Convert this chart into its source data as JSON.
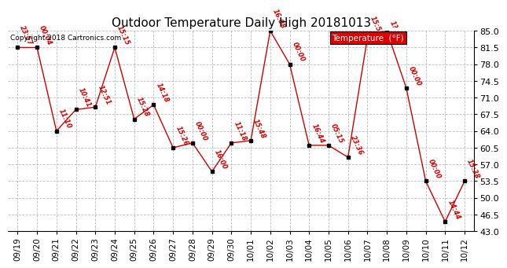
{
  "title": "Outdoor Temperature Daily High 20181013",
  "copyright": "Copyright 2018 Cartronics.com",
  "ylim": [
    43.0,
    85.0
  ],
  "yticks": [
    43.0,
    46.5,
    50.0,
    53.5,
    57.0,
    60.5,
    64.0,
    67.5,
    71.0,
    74.5,
    78.0,
    81.5,
    85.0
  ],
  "dates": [
    "09/19",
    "09/20",
    "09/21",
    "09/22",
    "09/23",
    "09/24",
    "09/25",
    "09/26",
    "09/27",
    "09/28",
    "09/29",
    "09/30",
    "10/01",
    "10/02",
    "10/03",
    "10/04",
    "10/05",
    "10/06",
    "10/07",
    "10/08",
    "10/09",
    "10/10",
    "10/11",
    "10/12"
  ],
  "values": [
    81.5,
    81.5,
    64.0,
    68.5,
    69.0,
    81.5,
    66.5,
    69.5,
    60.5,
    61.5,
    55.5,
    61.5,
    62.0,
    85.0,
    78.0,
    61.0,
    61.0,
    58.5,
    83.5,
    85.0,
    73.0,
    53.5,
    45.0,
    53.5
  ],
  "labels": [
    "23:57",
    "00:04",
    "11:10",
    "10:41",
    "12:51",
    "15:15",
    "15:28",
    "14:18",
    "15:26",
    "00:00",
    "16:00",
    "11:18",
    "15:48",
    "16:08",
    "00:00",
    "16:44",
    "05:15",
    "23:36",
    "15:52",
    "1?",
    "00:00",
    "00:00",
    "14:44",
    "15:38"
  ],
  "line_color": "#cc0000",
  "bg_color": "#ffffff",
  "grid_color": "#bbbbbb",
  "title_fontsize": 11,
  "legend_label": "Temperature  (°F)",
  "legend_bg": "#dd0000",
  "legend_fg": "#ffffff"
}
